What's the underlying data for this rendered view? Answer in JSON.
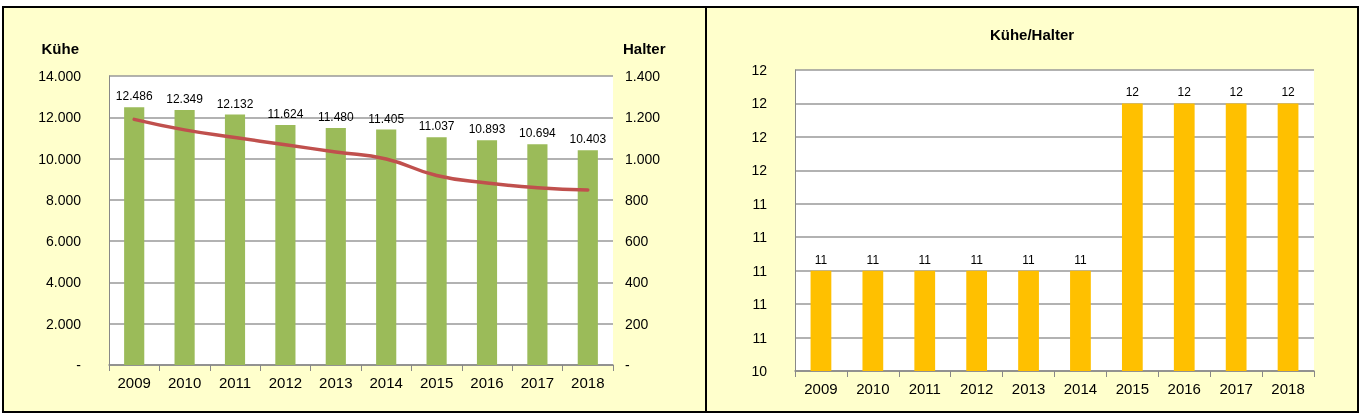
{
  "chart_data": [
    {
      "type": "bar",
      "ylabel": "Kühe",
      "y2label": "Halter",
      "categories": [
        "2009",
        "2010",
        "2011",
        "2012",
        "2013",
        "2014",
        "2015",
        "2016",
        "2017",
        "2018"
      ],
      "series": [
        {
          "color": "#9bbb59",
          "values": [
            12486,
            12349,
            12132,
            11624,
            11480,
            11405,
            11037,
            10893,
            10694,
            10403
          ],
          "value_labels": [
            "12.486",
            "12.349",
            "12.132",
            "11.624",
            "11.480",
            "11.405",
            "11.037",
            "10.893",
            "10.694",
            "10.403"
          ]
        },
        {
          "type": "line",
          "axis": "y2",
          "color": "#c0504d",
          "values": [
            1190,
            1139,
            1102,
            1067,
            1032,
            998,
            918,
            882,
            859,
            848
          ]
        }
      ],
      "marker": "none",
      "grid": "y",
      "ylim": [
        0,
        14000
      ],
      "yticks": [
        {
          "value": 0,
          "label": "-"
        },
        {
          "value": 2000,
          "label": "2.000"
        },
        {
          "value": 4000,
          "label": "4.000"
        },
        {
          "value": 6000,
          "label": "6.000"
        },
        {
          "value": 8000,
          "label": "8.000"
        },
        {
          "value": 10000,
          "label": "10.000"
        },
        {
          "value": 12000,
          "label": "12.000"
        },
        {
          "value": 14000,
          "label": "14.000"
        }
      ],
      "y2lim": [
        0,
        1400
      ],
      "y2ticks": [
        {
          "value": 0,
          "label": "-"
        },
        200,
        400,
        600,
        800,
        {
          "value": 1000,
          "label": "1.000"
        },
        {
          "value": 1200,
          "label": "1.200"
        },
        {
          "value": 1400,
          "label": "1.400"
        }
      ]
    },
    {
      "type": "bar",
      "title": "Kühe/Halter",
      "categories": [
        "2009",
        "2010",
        "2011",
        "2012",
        "2013",
        "2014",
        "2015",
        "2016",
        "2017",
        "2018"
      ],
      "series": [
        {
          "color": "#ffc000",
          "values": [
            11,
            11,
            11,
            11,
            11,
            11,
            12,
            12,
            12,
            12
          ]
        }
      ],
      "data_labels": true,
      "grid": "y",
      "ylim": [
        10.4,
        12.2
      ],
      "yticks": [
        {
          "value": 10.4,
          "label": "10"
        },
        {
          "value": 10.6,
          "label": "11"
        },
        {
          "value": 10.8,
          "label": "11"
        },
        {
          "value": 11,
          "label": "11"
        },
        {
          "value": 11.2,
          "label": "11"
        },
        {
          "value": 11.4,
          "label": "11"
        },
        {
          "value": 11.6,
          "label": "12"
        },
        {
          "value": 11.8,
          "label": "12"
        },
        {
          "value": 12,
          "label": "12"
        },
        {
          "value": 12.2,
          "label": "12"
        }
      ]
    }
  ]
}
